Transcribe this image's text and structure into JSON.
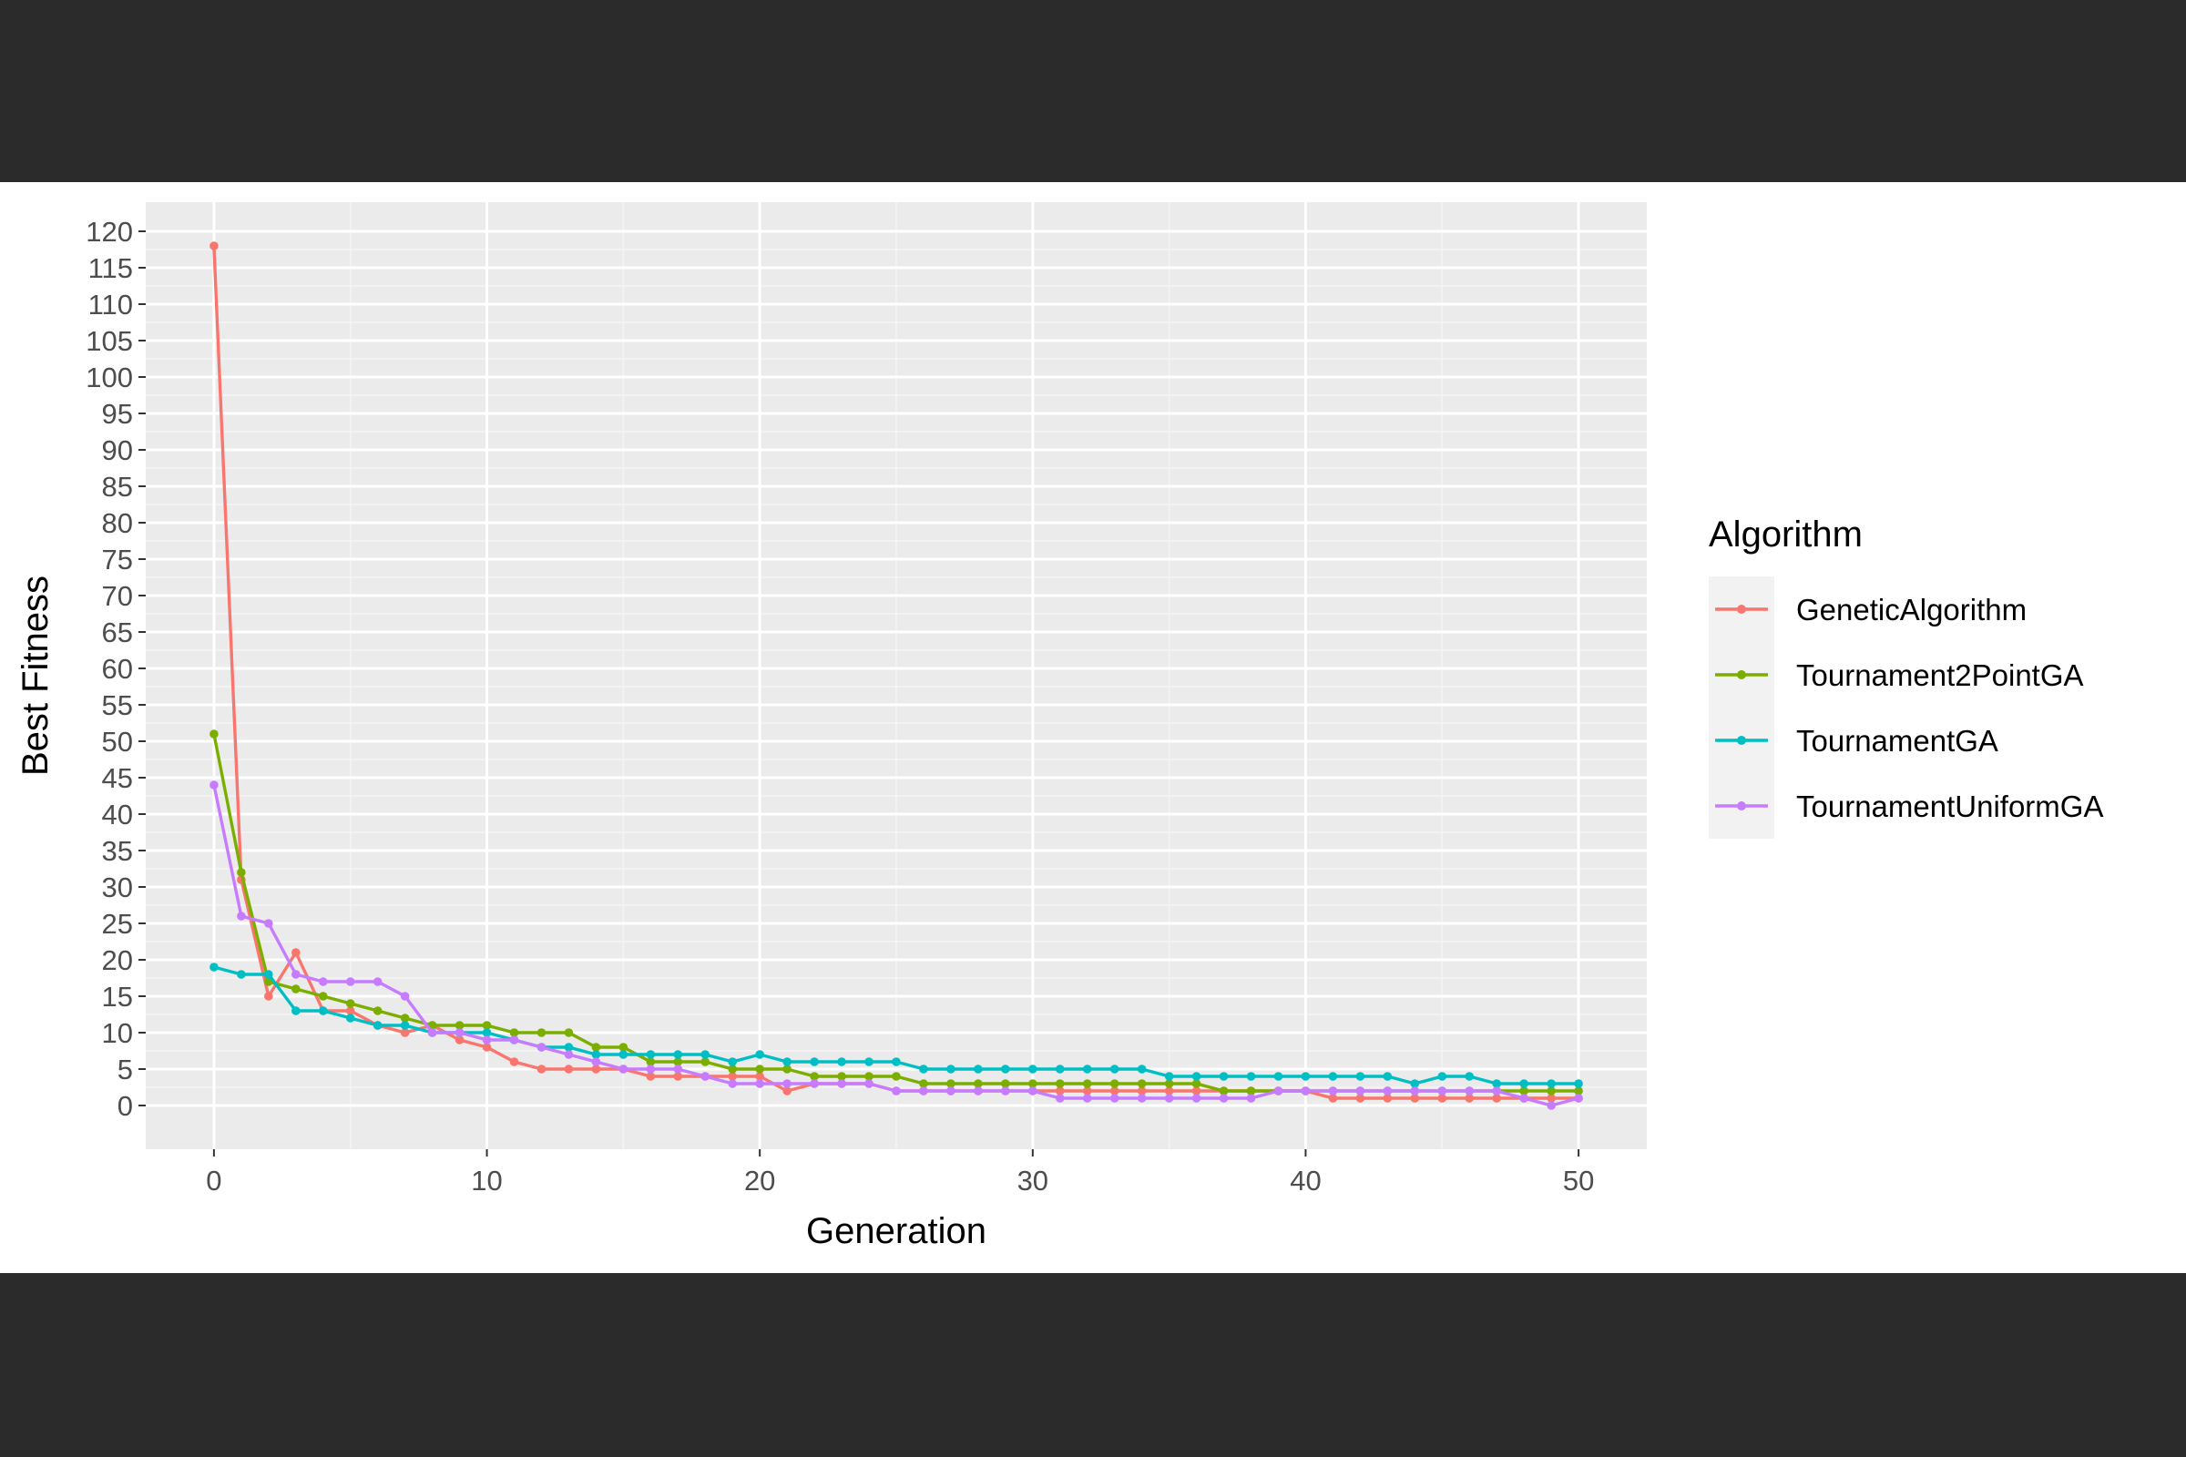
{
  "chart_data": {
    "type": "line",
    "xlabel": "Generation",
    "ylabel": "Best Fitness",
    "xlim": [
      -2.5,
      52.5
    ],
    "ylim": [
      -6,
      124
    ],
    "x_ticks": [
      "0",
      "10",
      "20",
      "30",
      "40",
      "50"
    ],
    "y_ticks": [
      "0",
      "5",
      "10",
      "15",
      "20",
      "25",
      "30",
      "35",
      "40",
      "45",
      "50",
      "55",
      "60",
      "65",
      "70",
      "75",
      "80",
      "85",
      "90",
      "95",
      "100",
      "105",
      "110",
      "115",
      "120"
    ],
    "grid": true,
    "legend_position": "right",
    "legend_title": "Algorithm",
    "x": [
      0,
      1,
      2,
      3,
      4,
      5,
      6,
      7,
      8,
      9,
      10,
      11,
      12,
      13,
      14,
      15,
      16,
      17,
      18,
      19,
      20,
      21,
      22,
      23,
      24,
      25,
      26,
      27,
      28,
      29,
      30,
      31,
      32,
      33,
      34,
      35,
      36,
      37,
      38,
      39,
      40,
      41,
      42,
      43,
      44,
      45,
      46,
      47,
      48,
      49,
      50
    ],
    "series": [
      {
        "name": "GeneticAlgorithm",
        "color": "#F8766D",
        "values": [
          118,
          31,
          15,
          21,
          13,
          13,
          11,
          10,
          11,
          9,
          8,
          6,
          5,
          5,
          5,
          5,
          4,
          4,
          4,
          4,
          4,
          2,
          3,
          3,
          3,
          2,
          2,
          2,
          2,
          2,
          2,
          2,
          2,
          2,
          2,
          2,
          2,
          2,
          2,
          2,
          2,
          1,
          1,
          1,
          1,
          1,
          1,
          1,
          1,
          1,
          1
        ]
      },
      {
        "name": "Tournament2PointGA",
        "color": "#7CAE00",
        "values": [
          51,
          32,
          17,
          16,
          15,
          14,
          13,
          12,
          11,
          11,
          11,
          10,
          10,
          10,
          8,
          8,
          6,
          6,
          6,
          5,
          5,
          5,
          4,
          4,
          4,
          4,
          3,
          3,
          3,
          3,
          3,
          3,
          3,
          3,
          3,
          3,
          3,
          2,
          2,
          2,
          2,
          2,
          2,
          2,
          2,
          2,
          2,
          2,
          2,
          2,
          2
        ]
      },
      {
        "name": "TournamentGA",
        "color": "#00BFC4",
        "values": [
          19,
          18,
          18,
          13,
          13,
          12,
          11,
          11,
          10,
          10,
          10,
          9,
          8,
          8,
          7,
          7,
          7,
          7,
          7,
          6,
          7,
          6,
          6,
          6,
          6,
          6,
          5,
          5,
          5,
          5,
          5,
          5,
          5,
          5,
          5,
          4,
          4,
          4,
          4,
          4,
          4,
          4,
          4,
          4,
          3,
          4,
          4,
          3,
          3,
          3,
          3
        ]
      },
      {
        "name": "TournamentUniformGA",
        "color": "#C77CFF",
        "values": [
          44,
          26,
          25,
          18,
          17,
          17,
          17,
          15,
          10,
          10,
          9,
          9,
          8,
          7,
          6,
          5,
          5,
          5,
          4,
          3,
          3,
          3,
          3,
          3,
          3,
          2,
          2,
          2,
          2,
          2,
          2,
          1,
          1,
          1,
          1,
          1,
          1,
          1,
          1,
          2,
          2,
          2,
          2,
          2,
          2,
          2,
          2,
          2,
          1,
          0,
          1
        ]
      }
    ]
  }
}
